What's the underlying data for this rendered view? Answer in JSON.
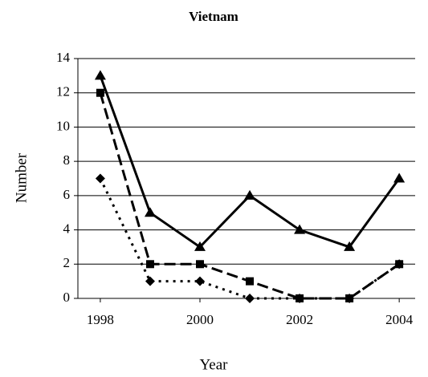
{
  "chart_data": {
    "type": "line",
    "title": "Vietnam",
    "x_label": "Year",
    "y_label": "Number",
    "x": [
      1998,
      1999,
      2000,
      2001,
      2002,
      2003,
      2004
    ],
    "series": [
      {
        "color": "#000000",
        "dash": "solid",
        "marker": "triangle",
        "values": [
          13,
          5,
          3,
          6,
          4,
          3,
          7
        ]
      },
      {
        "color": "#000000",
        "dash": "dashed",
        "marker": "square",
        "values": [
          12,
          2,
          2,
          1,
          0,
          0,
          2
        ]
      },
      {
        "color": "#000000",
        "dash": "dotted",
        "marker": "diamond",
        "values": [
          7,
          1,
          1,
          0,
          0,
          0,
          2
        ]
      }
    ],
    "xlim": [
      1997.55,
      2004.32
    ],
    "xticks": [
      1998,
      2000,
      2002,
      2004
    ],
    "ylim": [
      0,
      14
    ],
    "yticks": [
      0,
      2,
      4,
      6,
      8,
      10,
      12,
      14
    ],
    "grid": true
  }
}
